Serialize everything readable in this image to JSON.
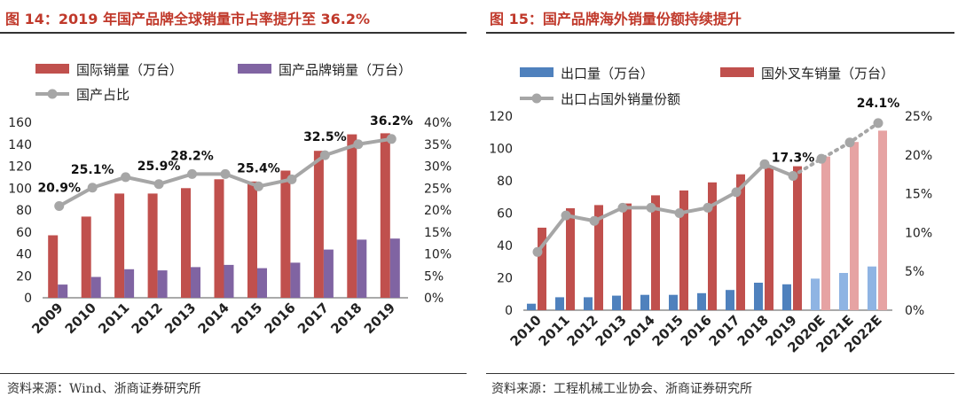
{
  "colors": {
    "title": "#c0392b",
    "domestic_bar": "#c0504d",
    "domestic_bar_est": "#e6a3a3",
    "brand_bar": "#8064a2",
    "export_bar": "#4f81bd",
    "export_bar_est": "#8fb4e3",
    "share_line": "#a6a6a6"
  },
  "left": {
    "title": "图 14：2019 年国产品牌全球销量市占率提升至 36.2%",
    "source": "资料来源：Wind、浙商证券研究所"
  },
  "right": {
    "title": "图 15：国产品牌海外销量份额持续提升",
    "source": "资料来源：工程机械工业协会、浙商证券研究所"
  },
  "chart_data": [
    {
      "type": "bar",
      "categories": [
        "2009",
        "2010",
        "2011",
        "2012",
        "2013",
        "2014",
        "2015",
        "2016",
        "2017",
        "2018",
        "2019"
      ],
      "series": [
        {
          "name": "国际销量（万台）",
          "kind": "bar",
          "axis": "left",
          "color_key": "domestic_bar",
          "values": [
            57,
            74,
            95,
            95,
            100,
            108,
            106,
            116,
            134,
            149,
            150
          ]
        },
        {
          "name": "国产品牌销量（万台）",
          "kind": "bar",
          "axis": "left",
          "color_key": "brand_bar",
          "values": [
            12,
            19,
            26,
            25,
            28,
            30,
            27,
            32,
            44,
            53,
            54
          ]
        },
        {
          "name": "国产占比",
          "kind": "line",
          "axis": "right",
          "color_key": "share_line",
          "values": [
            20.9,
            25.1,
            27.5,
            25.9,
            28.2,
            28.2,
            25.4,
            27.0,
            32.5,
            35.0,
            36.2
          ],
          "labels": [
            "20.9%",
            "25.1%",
            "",
            "25.9%",
            "28.2%",
            "",
            "25.4%",
            "",
            "32.5%",
            "",
            "36.2%"
          ]
        }
      ],
      "ylim_left": [
        0,
        160
      ],
      "yticks_left": [
        "0",
        "20",
        "40",
        "60",
        "80",
        "100",
        "120",
        "140",
        "160"
      ],
      "ylim_right": [
        0,
        40
      ],
      "yticks_right": [
        "0%",
        "5%",
        "10%",
        "15%",
        "20%",
        "25%",
        "30%",
        "35%",
        "40%"
      ],
      "legend_position": "top-left",
      "grid": false
    },
    {
      "type": "bar",
      "categories": [
        "2010",
        "2011",
        "2012",
        "2013",
        "2014",
        "2015",
        "2016",
        "2017",
        "2018",
        "2019",
        "2020E",
        "2021E",
        "2022E"
      ],
      "estimate_from_index": 10,
      "series": [
        {
          "name": "出口量（万台）",
          "kind": "bar",
          "axis": "left",
          "color_key": "export_bar",
          "values": [
            4,
            8,
            8,
            9,
            9.5,
            9.5,
            10.5,
            12.5,
            17,
            16,
            19.5,
            23,
            27
          ]
        },
        {
          "name": "国外叉车销量（万台）",
          "kind": "bar",
          "axis": "left",
          "color_key": "domestic_bar",
          "values": [
            51,
            63,
            65,
            66,
            71,
            74,
            79,
            84,
            88,
            89,
            95,
            104,
            111
          ]
        },
        {
          "name": "出口占国外销量份额",
          "kind": "line",
          "axis": "right",
          "color_key": "share_line",
          "values": [
            7.5,
            12.2,
            11.5,
            13.2,
            13.2,
            12.5,
            13.2,
            15.2,
            18.8,
            17.3,
            19.5,
            21.6,
            24.1
          ],
          "labels": [
            "",
            "",
            "",
            "",
            "",
            "",
            "",
            "",
            "",
            "17.3%",
            "",
            "",
            "24.1%"
          ]
        }
      ],
      "ylim_left": [
        0,
        120
      ],
      "yticks_left": [
        "0",
        "20",
        "40",
        "60",
        "80",
        "100",
        "120"
      ],
      "ylim_right": [
        0,
        25
      ],
      "yticks_right": [
        "0%",
        "5%",
        "10%",
        "15%",
        "20%",
        "25%"
      ],
      "legend_position": "top-left",
      "grid": false
    }
  ]
}
